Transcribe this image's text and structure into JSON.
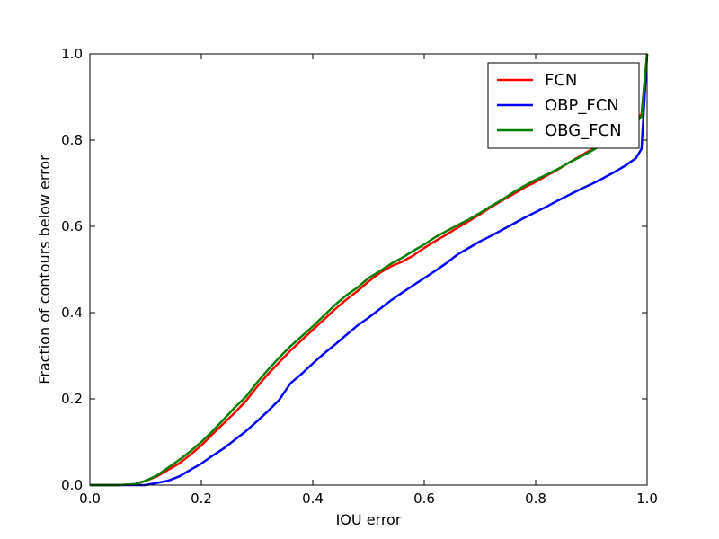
{
  "chart_data": {
    "type": "line",
    "title": "",
    "xlabel": "IOU error",
    "ylabel": "Fraction of contours below error",
    "xlim": [
      0.0,
      1.0
    ],
    "ylim": [
      0.0,
      1.0
    ],
    "xticks": [
      "0.0",
      "0.2",
      "0.4",
      "0.6",
      "0.8",
      "1.0"
    ],
    "yticks": [
      "0.0",
      "0.2",
      "0.4",
      "0.6",
      "0.8",
      "1.0"
    ],
    "grid": false,
    "legend_position": "top-right",
    "series": [
      {
        "name": "FCN",
        "color": "#ff0000",
        "x": [
          0.0,
          0.05,
          0.08,
          0.1,
          0.12,
          0.14,
          0.16,
          0.18,
          0.2,
          0.22,
          0.24,
          0.26,
          0.28,
          0.3,
          0.32,
          0.34,
          0.36,
          0.38,
          0.4,
          0.42,
          0.44,
          0.46,
          0.48,
          0.5,
          0.52,
          0.54,
          0.56,
          0.58,
          0.6,
          0.62,
          0.64,
          0.66,
          0.68,
          0.7,
          0.72,
          0.74,
          0.76,
          0.78,
          0.8,
          0.82,
          0.84,
          0.86,
          0.88,
          0.9,
          0.92,
          0.94,
          0.96,
          0.98,
          0.99,
          1.0
        ],
        "y": [
          0.0,
          0.0,
          0.002,
          0.01,
          0.02,
          0.035,
          0.05,
          0.07,
          0.092,
          0.118,
          0.143,
          0.168,
          0.195,
          0.228,
          0.258,
          0.285,
          0.312,
          0.336,
          0.36,
          0.384,
          0.408,
          0.43,
          0.45,
          0.472,
          0.492,
          0.507,
          0.518,
          0.532,
          0.55,
          0.566,
          0.581,
          0.597,
          0.612,
          0.628,
          0.645,
          0.66,
          0.675,
          0.69,
          0.703,
          0.718,
          0.732,
          0.748,
          0.763,
          0.778,
          0.793,
          0.808,
          0.825,
          0.845,
          0.86,
          1.0
        ]
      },
      {
        "name": "OBP_FCN",
        "color": "#0000ff",
        "x": [
          0.0,
          0.05,
          0.1,
          0.12,
          0.14,
          0.16,
          0.18,
          0.2,
          0.22,
          0.24,
          0.26,
          0.28,
          0.3,
          0.32,
          0.34,
          0.36,
          0.38,
          0.4,
          0.42,
          0.44,
          0.46,
          0.48,
          0.5,
          0.52,
          0.54,
          0.56,
          0.58,
          0.6,
          0.62,
          0.64,
          0.66,
          0.68,
          0.7,
          0.72,
          0.74,
          0.76,
          0.78,
          0.8,
          0.82,
          0.84,
          0.86,
          0.88,
          0.9,
          0.92,
          0.94,
          0.96,
          0.98,
          0.99,
          1.0
        ],
        "y": [
          0.0,
          0.0,
          0.0,
          0.005,
          0.01,
          0.02,
          0.035,
          0.05,
          0.068,
          0.085,
          0.105,
          0.125,
          0.148,
          0.172,
          0.198,
          0.236,
          0.258,
          0.282,
          0.305,
          0.326,
          0.348,
          0.37,
          0.388,
          0.408,
          0.428,
          0.446,
          0.463,
          0.48,
          0.497,
          0.515,
          0.535,
          0.55,
          0.565,
          0.578,
          0.592,
          0.606,
          0.62,
          0.633,
          0.646,
          0.66,
          0.673,
          0.686,
          0.698,
          0.711,
          0.725,
          0.74,
          0.758,
          0.78,
          1.0
        ]
      },
      {
        "name": "OBG_FCN",
        "color": "#008000",
        "x": [
          0.0,
          0.05,
          0.08,
          0.1,
          0.12,
          0.14,
          0.16,
          0.18,
          0.2,
          0.22,
          0.24,
          0.26,
          0.28,
          0.3,
          0.32,
          0.34,
          0.36,
          0.38,
          0.4,
          0.42,
          0.44,
          0.46,
          0.48,
          0.5,
          0.52,
          0.54,
          0.56,
          0.58,
          0.6,
          0.62,
          0.64,
          0.66,
          0.68,
          0.7,
          0.72,
          0.74,
          0.76,
          0.78,
          0.8,
          0.82,
          0.84,
          0.86,
          0.88,
          0.9,
          0.92,
          0.94,
          0.96,
          0.98,
          0.99,
          1.0
        ],
        "y": [
          0.0,
          0.0,
          0.002,
          0.01,
          0.022,
          0.04,
          0.058,
          0.078,
          0.1,
          0.125,
          0.152,
          0.18,
          0.205,
          0.238,
          0.268,
          0.296,
          0.322,
          0.345,
          0.368,
          0.393,
          0.418,
          0.44,
          0.458,
          0.48,
          0.496,
          0.513,
          0.527,
          0.543,
          0.558,
          0.575,
          0.589,
          0.603,
          0.616,
          0.631,
          0.647,
          0.662,
          0.679,
          0.694,
          0.708,
          0.72,
          0.733,
          0.748,
          0.761,
          0.775,
          0.79,
          0.805,
          0.822,
          0.84,
          0.855,
          1.0
        ]
      }
    ]
  }
}
